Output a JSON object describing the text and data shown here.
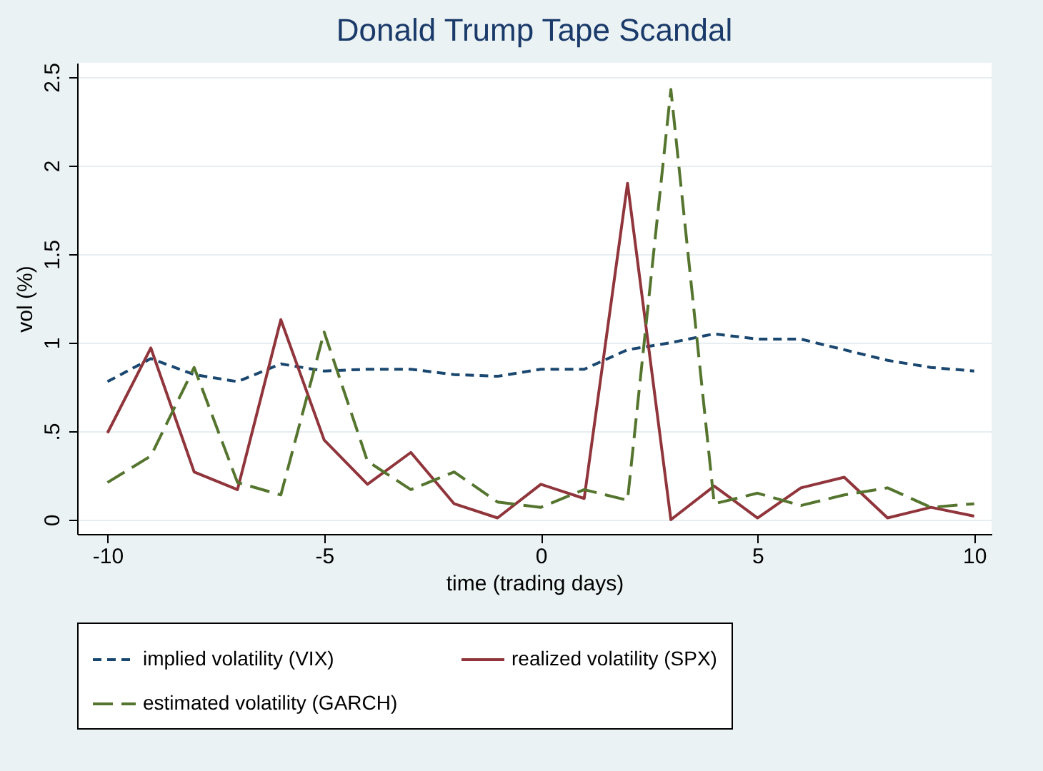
{
  "chart_data": {
    "type": "line",
    "title": "Donald Trump Tape Scandal",
    "xlabel": "time (trading days)",
    "ylabel": "vol (%)",
    "x": [
      -10,
      -9,
      -8,
      -7,
      -6,
      -5,
      -4,
      -3,
      -2,
      -1,
      0,
      1,
      2,
      3,
      4,
      5,
      6,
      7,
      8,
      9,
      10
    ],
    "series": [
      {
        "name": "implied volatility (VIX)",
        "color": "#1a476f",
        "line_style": "dashed",
        "values": [
          0.78,
          0.91,
          0.82,
          0.78,
          0.88,
          0.84,
          0.85,
          0.85,
          0.82,
          0.81,
          0.85,
          0.85,
          0.96,
          1.0,
          1.05,
          1.02,
          1.02,
          0.96,
          0.9,
          0.86,
          0.84
        ]
      },
      {
        "name": "realized volatility (SPX)",
        "color": "#90353b",
        "line_style": "solid",
        "values": [
          0.49,
          0.97,
          0.27,
          0.17,
          1.13,
          0.45,
          0.2,
          0.38,
          0.09,
          0.01,
          0.2,
          0.12,
          1.9,
          0.0,
          0.19,
          0.01,
          0.18,
          0.24,
          0.01,
          0.07,
          0.02
        ]
      },
      {
        "name": "estimated volatility (GARCH)",
        "color": "#55752f",
        "line_style": "dashed",
        "values": [
          0.21,
          0.36,
          0.86,
          0.21,
          0.14,
          1.06,
          0.33,
          0.17,
          0.27,
          0.1,
          0.07,
          0.17,
          0.11,
          2.43,
          0.09,
          0.15,
          0.08,
          0.14,
          0.18,
          0.07,
          0.09
        ]
      }
    ],
    "xlim": [
      -10.7,
      10.4
    ],
    "xticks": [
      -10,
      -5,
      0,
      5,
      10
    ],
    "ylim": [
      0,
      2.5
    ],
    "yticks": [
      0,
      {
        "value": 0.5,
        "label": ".5"
      },
      1,
      1.5,
      2,
      2.5
    ],
    "grid": "y",
    "legend": "bottom"
  }
}
